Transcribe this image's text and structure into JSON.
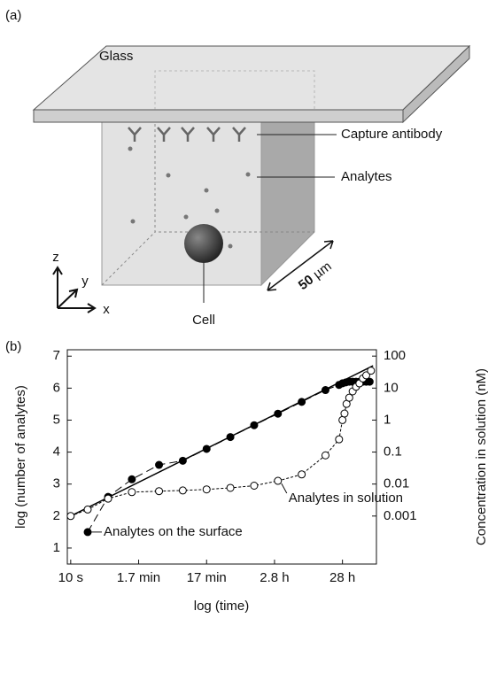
{
  "panel_a": {
    "label": "(a)",
    "glass": "Glass",
    "capture_antibody": "Capture antibody",
    "analytes": "Analytes",
    "cell": "Cell",
    "scale": {
      "value": "50",
      "unit": "µm"
    },
    "axes": {
      "x": "x",
      "y": "y",
      "z": "z"
    }
  },
  "chart_data": {
    "type": "line",
    "panel_label": "(b)",
    "xlabel": "log (time)",
    "ylabel": "log (number of analytes)",
    "y2label": "Concentration in solution (nM)",
    "xlim": [
      0.95,
      5.5
    ],
    "xticks": [
      {
        "value": 1,
        "label": "10 s"
      },
      {
        "value": 2,
        "label": "1.7 min"
      },
      {
        "value": 3,
        "label": "17 min"
      },
      {
        "value": 4,
        "label": "2.8 h"
      },
      {
        "value": 5,
        "label": "28 h"
      }
    ],
    "ylim": [
      0.5,
      7.2
    ],
    "yticks": [
      1,
      2,
      3,
      4,
      5,
      6,
      7
    ],
    "y2scale": "log",
    "y2lim": [
      3.16e-05,
      158
    ],
    "y2ticks": [
      0.001,
      0.01,
      0.1,
      1,
      10,
      100
    ],
    "series": [
      {
        "color": "#000000",
        "style": "solid",
        "x": [
          1,
          5.45
        ],
        "values": [
          2,
          6.7
        ]
      },
      {
        "name": "Analytes on the surface",
        "color": "#000000",
        "style": "dashed",
        "marker": "filled",
        "x": [
          1.25,
          1.55,
          1.9,
          2.3,
          2.65,
          3.0,
          3.35,
          3.7,
          4.05,
          4.4,
          4.75,
          4.95,
          5.0,
          5.05,
          5.1,
          5.15,
          5.2,
          5.25,
          5.3,
          5.35,
          5.4
        ],
        "values": [
          1.5,
          2.6,
          3.15,
          3.6,
          3.73,
          4.1,
          4.47,
          4.84,
          5.2,
          5.57,
          5.94,
          6.1,
          6.15,
          6.18,
          6.2,
          6.2,
          6.2,
          6.2,
          6.2,
          6.2,
          6.2
        ]
      },
      {
        "name": "Analytes in solution",
        "color": "#000000",
        "style": "dotted",
        "marker": "open",
        "axis": "y2",
        "x": [
          1,
          1.25,
          1.55,
          1.9,
          2.3,
          2.65,
          3.0,
          3.35,
          3.7,
          4.05,
          4.4,
          4.75,
          4.95,
          5.0,
          5.03,
          5.06,
          5.1,
          5.15,
          5.2,
          5.25,
          5.3,
          5.35,
          5.42
        ],
        "values": [
          0.001,
          0.0016,
          0.0035,
          0.0056,
          0.006,
          0.0063,
          0.0068,
          0.0076,
          0.0089,
          0.0126,
          0.02,
          0.079,
          0.25,
          1,
          1.6,
          3.2,
          5,
          7.9,
          11,
          14,
          20,
          25,
          35
        ]
      }
    ]
  }
}
